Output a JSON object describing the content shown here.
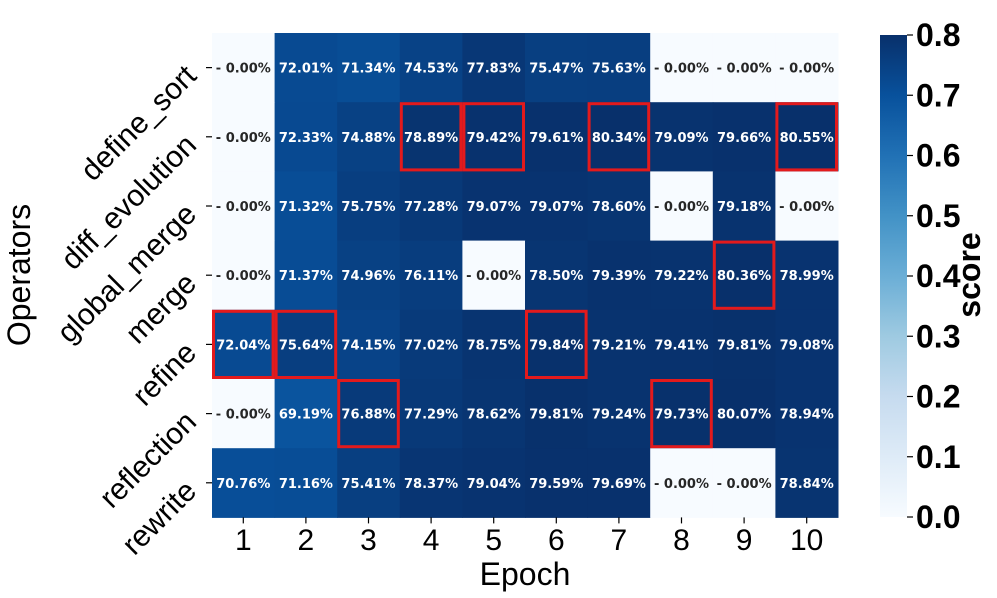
{
  "chart_data": {
    "type": "heatmap",
    "xlabel": "Epoch",
    "ylabel": "Operators",
    "x_categories": [
      "1",
      "2",
      "3",
      "4",
      "5",
      "6",
      "7",
      "8",
      "9",
      "10"
    ],
    "y_categories": [
      "define_sort",
      "diff_evolution",
      "global_merge",
      "merge",
      "refine",
      "reflection",
      "rewrite"
    ],
    "values": [
      [
        0.0,
        0.7201,
        0.7134,
        0.7453,
        0.7783,
        0.7547,
        0.7563,
        0.0,
        0.0,
        0.0
      ],
      [
        0.0,
        0.7233,
        0.7488,
        0.7889,
        0.7942,
        0.7961,
        0.8034,
        0.7909,
        0.7966,
        0.8055
      ],
      [
        0.0,
        0.7132,
        0.7575,
        0.7728,
        0.7907,
        0.7907,
        0.786,
        0.0,
        0.7918,
        0.0
      ],
      [
        0.0,
        0.7137,
        0.7496,
        0.7611,
        0.0,
        0.785,
        0.7939,
        0.7922,
        0.8036,
        0.7899
      ],
      [
        0.7204,
        0.7564,
        0.7415,
        0.7702,
        0.7875,
        0.7984,
        0.7921,
        0.7941,
        0.7981,
        0.7908
      ],
      [
        0.0,
        0.6919,
        0.7688,
        0.7729,
        0.7862,
        0.7981,
        0.7924,
        0.7973,
        0.8007,
        0.7894
      ],
      [
        0.7076,
        0.7116,
        0.7541,
        0.7837,
        0.7904,
        0.7959,
        0.7969,
        0.0,
        0.0,
        0.7884
      ]
    ],
    "cell_labels": [
      [
        "0.00%",
        "72.01%",
        "71.34%",
        "74.53%",
        "77.83%",
        "75.47%",
        "75.63%",
        "0.00%",
        "0.00%",
        "0.00%"
      ],
      [
        "0.00%",
        "72.33%",
        "74.88%",
        "78.89%",
        "79.42%",
        "79.61%",
        "80.34%",
        "79.09%",
        "79.66%",
        "80.55%"
      ],
      [
        "0.00%",
        "71.32%",
        "75.75%",
        "77.28%",
        "79.07%",
        "79.07%",
        "78.60%",
        "0.00%",
        "79.18%",
        "0.00%"
      ],
      [
        "0.00%",
        "71.37%",
        "74.96%",
        "76.11%",
        "0.00%",
        "78.50%",
        "79.39%",
        "79.22%",
        "80.36%",
        "78.99%"
      ],
      [
        "72.04%",
        "75.64%",
        "74.15%",
        "77.02%",
        "78.75%",
        "79.84%",
        "79.21%",
        "79.41%",
        "79.81%",
        "79.08%"
      ],
      [
        "0.00%",
        "69.19%",
        "76.88%",
        "77.29%",
        "78.62%",
        "79.81%",
        "79.24%",
        "79.73%",
        "80.07%",
        "78.94%"
      ],
      [
        "70.76%",
        "71.16%",
        "75.41%",
        "78.37%",
        "79.04%",
        "79.59%",
        "79.69%",
        "0.00%",
        "0.00%",
        "78.84%"
      ]
    ],
    "highlighted_cells": [
      [
        1,
        3
      ],
      [
        1,
        4
      ],
      [
        1,
        6
      ],
      [
        1,
        9
      ],
      [
        3,
        8
      ],
      [
        4,
        0
      ],
      [
        4,
        1
      ],
      [
        4,
        5
      ],
      [
        5,
        2
      ],
      [
        5,
        7
      ]
    ],
    "highlight_color": "#e31a1c",
    "colorbar": {
      "label": "score",
      "min": 0.0,
      "max": 0.8,
      "ticks": [
        "0.0",
        "0.1",
        "0.2",
        "0.3",
        "0.4",
        "0.5",
        "0.6",
        "0.7",
        "0.8"
      ],
      "colormap": "Blues"
    }
  }
}
